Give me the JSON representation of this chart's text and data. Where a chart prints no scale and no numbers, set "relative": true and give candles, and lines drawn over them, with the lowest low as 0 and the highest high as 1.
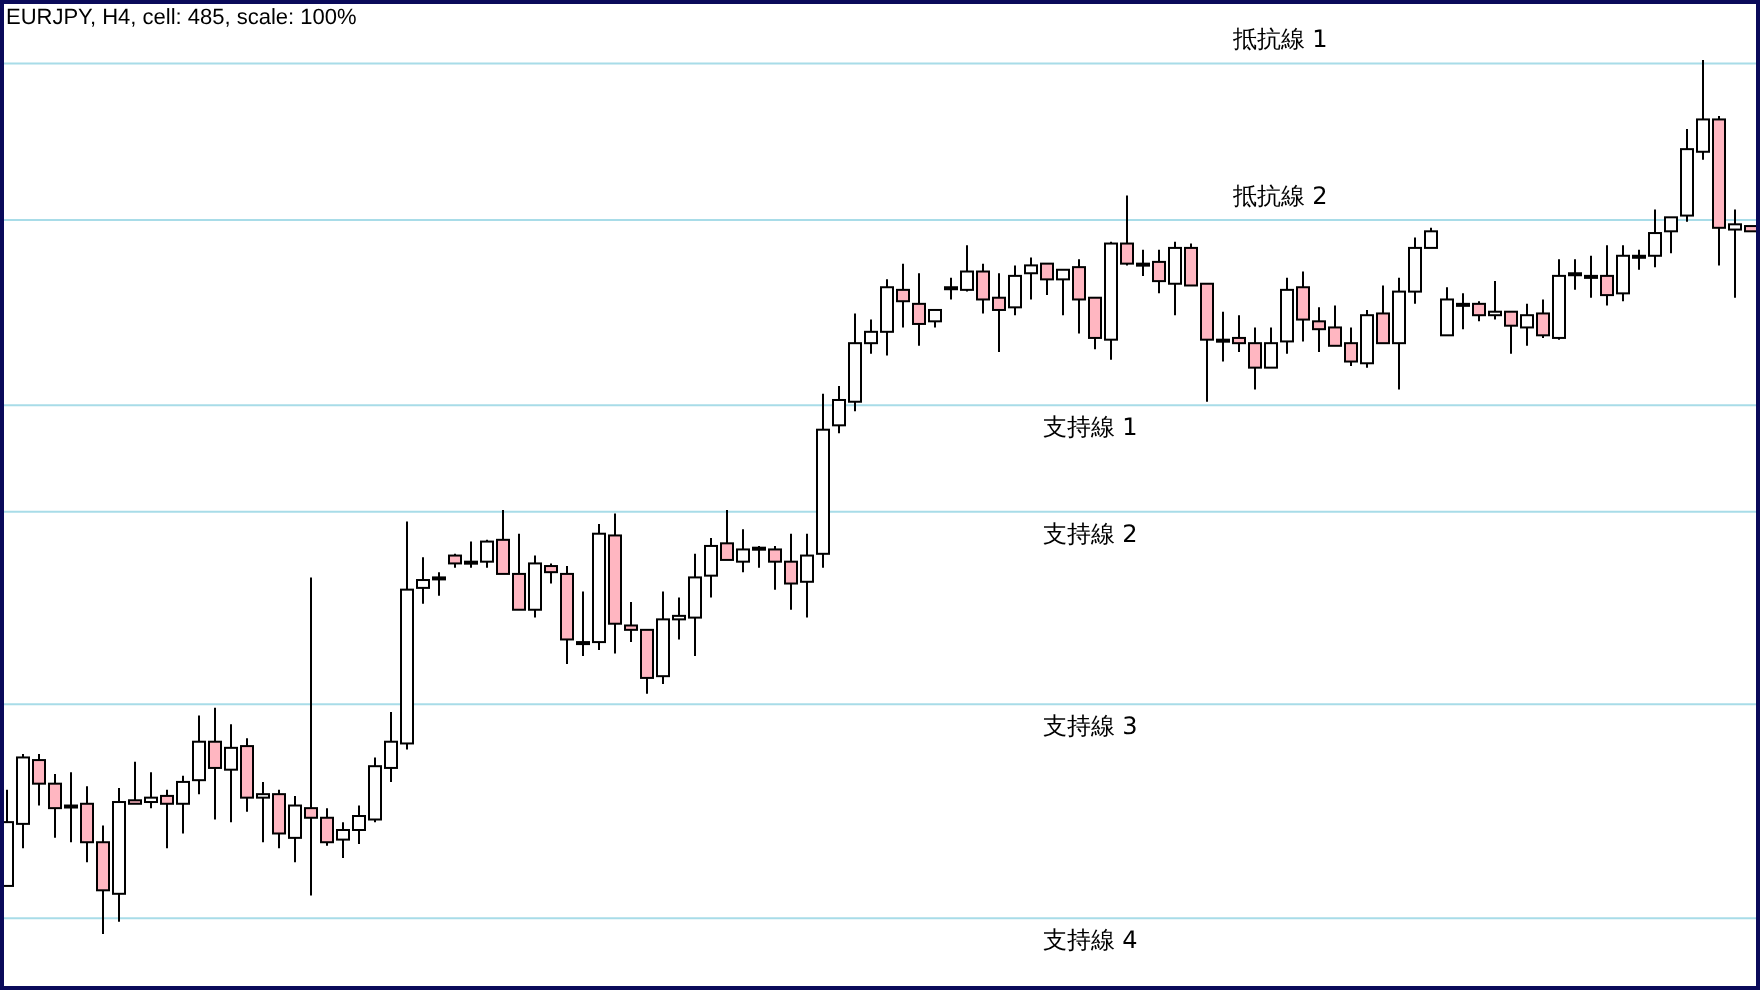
{
  "chart_data": {
    "type": "candlestick",
    "title": "EURJPY, H4, cell: 485, scale: 100%",
    "relative": true,
    "categories": [
      null,
      null,
      null,
      null,
      null,
      null,
      null,
      null,
      null,
      null,
      null,
      null,
      null,
      null,
      null,
      null,
      null,
      null,
      null,
      null,
      null,
      null,
      null,
      null,
      null,
      null,
      null,
      null,
      null,
      null,
      null,
      null,
      null,
      null,
      null,
      null,
      null,
      null,
      null,
      null,
      null,
      null,
      null,
      null,
      null,
      null,
      null,
      null,
      null,
      null,
      null,
      null,
      null,
      null,
      null,
      null,
      null,
      null,
      null,
      null,
      null,
      null,
      null,
      null,
      null,
      null,
      null,
      null,
      null,
      null,
      null,
      null,
      null,
      null,
      null,
      null,
      null,
      null,
      null,
      null,
      null,
      null,
      null,
      null,
      null,
      null,
      null,
      null,
      null,
      null,
      null,
      null,
      null,
      null,
      null,
      null,
      null,
      null,
      null,
      null,
      null,
      null,
      null,
      null,
      null,
      null,
      null,
      null,
      null,
      null
    ],
    "ohlc": [
      [
        0.055,
        0.165,
        0.055,
        0.128
      ],
      [
        0.126,
        0.206,
        0.098,
        0.202
      ],
      [
        0.199,
        0.206,
        0.147,
        0.172
      ],
      [
        0.172,
        0.183,
        0.11,
        0.144
      ],
      [
        0.147,
        0.185,
        0.105,
        0.147
      ],
      [
        0.149,
        0.169,
        0.082,
        0.105
      ],
      [
        0.105,
        0.124,
        0,
        0.05
      ],
      [
        0.046,
        0.167,
        0.014,
        0.151
      ],
      [
        0.153,
        0.197,
        0.149,
        0.149
      ],
      [
        0.151,
        0.185,
        0.144,
        0.156
      ],
      [
        0.158,
        0.165,
        0.098,
        0.149
      ],
      [
        0.149,
        0.181,
        0.115,
        0.174
      ],
      [
        0.176,
        0.25,
        0.16,
        0.22
      ],
      [
        0.22,
        0.259,
        0.131,
        0.19
      ],
      [
        0.188,
        0.24,
        0.128,
        0.213
      ],
      [
        0.215,
        0.224,
        0.14,
        0.156
      ],
      [
        0.156,
        0.174,
        0.105,
        0.16
      ],
      [
        0.16,
        0.165,
        0.098,
        0.115
      ],
      [
        0.11,
        0.158,
        0.082,
        0.147
      ],
      [
        0.144,
        0.408,
        0.044,
        0.133
      ],
      [
        0.133,
        0.144,
        0.101,
        0.105
      ],
      [
        0.108,
        0.128,
        0.087,
        0.119
      ],
      [
        0.119,
        0.147,
        0.103,
        0.135
      ],
      [
        0.131,
        0.202,
        0.128,
        0.192
      ],
      [
        0.19,
        0.254,
        0.174,
        0.22
      ],
      [
        0.218,
        0.472,
        0.211,
        0.394
      ],
      [
        0.396,
        0.431,
        0.378,
        0.405
      ],
      [
        0.408,
        0.414,
        0.387,
        0.408
      ],
      [
        0.433,
        0.435,
        0.419,
        0.424
      ],
      [
        0.426,
        0.449,
        0.419,
        0.426
      ],
      [
        0.426,
        0.451,
        0.419,
        0.449
      ],
      [
        0.451,
        0.485,
        0.412,
        0.412
      ],
      [
        0.412,
        0.458,
        0.371,
        0.371
      ],
      [
        0.371,
        0.433,
        0.362,
        0.424
      ],
      [
        0.421,
        0.424,
        0.401,
        0.414
      ],
      [
        0.412,
        0.421,
        0.309,
        0.337
      ],
      [
        0.334,
        0.392,
        0.318,
        0.334
      ],
      [
        0.334,
        0.469,
        0.325,
        0.458
      ],
      [
        0.456,
        0.481,
        0.321,
        0.355
      ],
      [
        0.353,
        0.38,
        0.334,
        0.348
      ],
      [
        0.348,
        0.348,
        0.275,
        0.293
      ],
      [
        0.295,
        0.392,
        0.286,
        0.36
      ],
      [
        0.36,
        0.385,
        0.337,
        0.364
      ],
      [
        0.362,
        0.435,
        0.318,
        0.408
      ],
      [
        0.41,
        0.453,
        0.385,
        0.444
      ],
      [
        0.447,
        0.485,
        0.428,
        0.428
      ],
      [
        0.426,
        0.463,
        0.414,
        0.44
      ],
      [
        0.442,
        0.444,
        0.419,
        0.442
      ],
      [
        0.44,
        0.444,
        0.394,
        0.426
      ],
      [
        0.426,
        0.458,
        0.371,
        0.401
      ],
      [
        0.403,
        0.458,
        0.362,
        0.433
      ],
      [
        0.435,
        0.618,
        0.419,
        0.577
      ],
      [
        0.582,
        0.627,
        0.573,
        0.611
      ],
      [
        0.609,
        0.71,
        0.598,
        0.676
      ],
      [
        0.676,
        0.703,
        0.664,
        0.689
      ],
      [
        0.689,
        0.749,
        0.662,
        0.74
      ],
      [
        0.737,
        0.767,
        0.694,
        0.724
      ],
      [
        0.721,
        0.756,
        0.673,
        0.698
      ],
      [
        0.701,
        0.714,
        0.694,
        0.714
      ],
      [
        0.74,
        0.751,
        0.726,
        0.74
      ],
      [
        0.737,
        0.788,
        0.735,
        0.758
      ],
      [
        0.758,
        0.767,
        0.71,
        0.726
      ],
      [
        0.728,
        0.756,
        0.666,
        0.714
      ],
      [
        0.717,
        0.765,
        0.708,
        0.753
      ],
      [
        0.756,
        0.774,
        0.726,
        0.765
      ],
      [
        0.767,
        0.767,
        0.731,
        0.749
      ],
      [
        0.749,
        0.76,
        0.708,
        0.76
      ],
      [
        0.763,
        0.772,
        0.687,
        0.726
      ],
      [
        0.728,
        0.728,
        0.669,
        0.682
      ],
      [
        0.68,
        0.792,
        0.657,
        0.79
      ],
      [
        0.79,
        0.845,
        0.765,
        0.767
      ],
      [
        0.767,
        0.783,
        0.753,
        0.767
      ],
      [
        0.769,
        0.783,
        0.733,
        0.747
      ],
      [
        0.744,
        0.792,
        0.708,
        0.785
      ],
      [
        0.785,
        0.79,
        0.742,
        0.742
      ],
      [
        0.744,
        0.744,
        0.609,
        0.68
      ],
      [
        0.68,
        0.712,
        0.655,
        0.68
      ],
      [
        0.682,
        0.708,
        0.666,
        0.676
      ],
      [
        0.676,
        0.694,
        0.623,
        0.648
      ],
      [
        0.648,
        0.694,
        0.648,
        0.676
      ],
      [
        0.678,
        0.751,
        0.664,
        0.737
      ],
      [
        0.74,
        0.758,
        0.678,
        0.703
      ],
      [
        0.701,
        0.717,
        0.666,
        0.692
      ],
      [
        0.694,
        0.719,
        0.673,
        0.673
      ],
      [
        0.676,
        0.694,
        0.65,
        0.655
      ],
      [
        0.653,
        0.714,
        0.648,
        0.708
      ],
      [
        0.71,
        0.742,
        0.676,
        0.676
      ],
      [
        0.676,
        0.751,
        0.623,
        0.735
      ],
      [
        0.735,
        0.797,
        0.721,
        0.785
      ],
      [
        0.785,
        0.808,
        0.785,
        0.804
      ],
      [
        0.685,
        0.74,
        0.685,
        0.726
      ],
      [
        0.721,
        0.733,
        0.692,
        0.721
      ],
      [
        0.721,
        0.724,
        0.701,
        0.708
      ],
      [
        0.708,
        0.747,
        0.703,
        0.712
      ],
      [
        0.712,
        0.712,
        0.664,
        0.696
      ],
      [
        0.694,
        0.721,
        0.673,
        0.708
      ],
      [
        0.71,
        0.726,
        0.682,
        0.685
      ],
      [
        0.682,
        0.772,
        0.68,
        0.753
      ],
      [
        0.756,
        0.772,
        0.737,
        0.756
      ],
      [
        0.753,
        0.776,
        0.728,
        0.753
      ],
      [
        0.753,
        0.788,
        0.719,
        0.731
      ],
      [
        0.733,
        0.788,
        0.724,
        0.776
      ],
      [
        0.776,
        0.783,
        0.76,
        0.776
      ],
      [
        0.776,
        0.829,
        0.763,
        0.802
      ],
      [
        0.804,
        0.82,
        0.779,
        0.82
      ],
      [
        0.822,
        0.921,
        0.815,
        0.898
      ],
      [
        0.895,
        1,
        0.886,
        0.932
      ],
      [
        0.932,
        0.936,
        0.765,
        0.808
      ],
      [
        0.806,
        0.829,
        0.728,
        0.812
      ],
      [
        0.81,
        0.81,
        0.804,
        0.804
      ]
    ],
    "ref_lines": [
      {
        "axis": "y",
        "value": 0.996,
        "label": "抵抗線 1",
        "color": "#a8dce8"
      },
      {
        "axis": "y",
        "value": 0.817,
        "label": "抵抗線 2",
        "color": "#a8dce8"
      },
      {
        "axis": "y",
        "value": 0.605,
        "label": "支持線 1",
        "color": "#a8dce8"
      },
      {
        "axis": "y",
        "value": 0.483,
        "label": "支持線 2",
        "color": "#a8dce8"
      },
      {
        "axis": "y",
        "value": 0.263,
        "label": "支持線 3",
        "color": "#a8dce8"
      },
      {
        "axis": "y",
        "value": 0.018,
        "label": "支持線 4",
        "color": "#a8dce8"
      }
    ]
  }
}
